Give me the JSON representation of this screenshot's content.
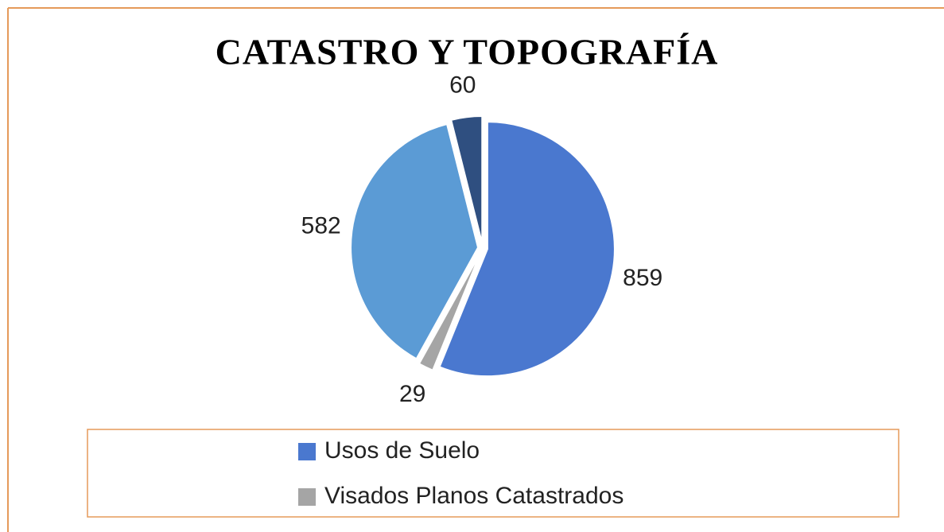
{
  "chart_data": {
    "type": "pie",
    "title": "CATASTRO Y TOPOGRAFÍA",
    "categories": [
      "Usos de Suelo",
      "Visados Planos Catastrados",
      null,
      null
    ],
    "values": [
      859,
      29,
      582,
      60
    ],
    "colors": [
      "#4a78cf",
      "#a5a5a5",
      "#5b9bd5",
      "#2f4f80"
    ]
  }
}
